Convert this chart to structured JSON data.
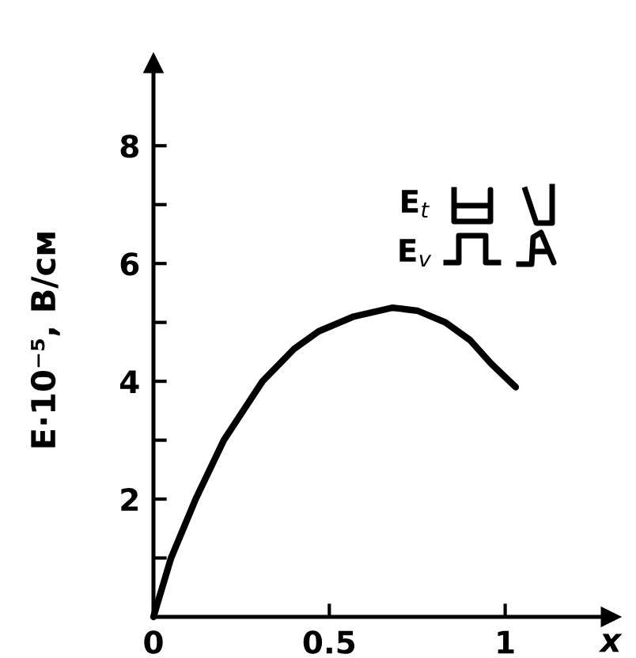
{
  "chart_data": {
    "type": "line",
    "xlabel": "x",
    "ylabel": "E·10⁻⁵, В/см",
    "annotations": [
      "E$_{t}$",
      "E$_{v}$"
    ],
    "x": [
      0,
      0.03,
      0.05,
      0.12,
      0.2,
      0.31,
      0.4,
      0.47,
      0.57,
      0.68,
      0.75,
      0.83,
      0.9,
      0.96,
      1.03
    ],
    "series": [
      {
        "color": "#000000",
        "values": [
          0,
          0.6,
          1.0,
          2.0,
          3.0,
          4.0,
          4.55,
          4.85,
          5.1,
          5.25,
          5.2,
          5.0,
          4.7,
          4.3,
          3.9
        ]
      }
    ],
    "xlim": [
      0,
      1.3
    ],
    "ylim": [
      0,
      9.4
    ],
    "xticks": [
      0,
      0.5,
      1
    ],
    "yticks": [
      {
        "value": 1,
        "label": null
      },
      2,
      {
        "value": 3,
        "label": null
      },
      4,
      {
        "value": 5,
        "label": null
      },
      6,
      {
        "value": 7,
        "label": null
      },
      8
    ],
    "line_style": "solid"
  }
}
